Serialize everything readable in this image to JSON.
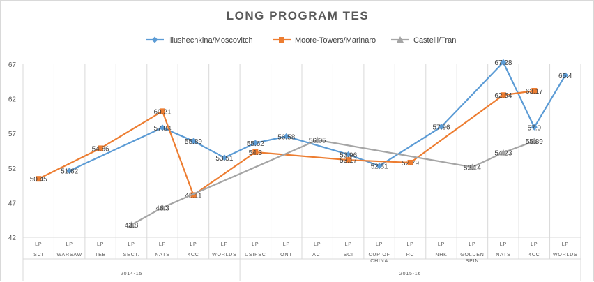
{
  "chart_data": {
    "type": "line",
    "title": "LONG PROGRAM TES",
    "xlabel": "",
    "ylabel": "",
    "ylim": [
      42,
      67
    ],
    "yticks": [
      42,
      47,
      52,
      57,
      62,
      67
    ],
    "grid": "vertical gridlines",
    "legend_position": "top",
    "categories": [
      [
        "LP",
        "SCI"
      ],
      [
        "LP",
        "WARSAW"
      ],
      [
        "LP",
        "TEB"
      ],
      [
        "LP",
        "SECT."
      ],
      [
        "LP",
        "NATS"
      ],
      [
        "LP",
        "4CC"
      ],
      [
        "LP",
        "WORLDS"
      ],
      [
        "LP",
        "USIFSC"
      ],
      [
        "LP",
        "ONT"
      ],
      [
        "LP",
        "ACI"
      ],
      [
        "LP",
        "SCI"
      ],
      [
        "LP",
        "CUP OF",
        "CHINA"
      ],
      [
        "LP",
        "RC"
      ],
      [
        "LP",
        "NHK"
      ],
      [
        "LP",
        "GOLDEN",
        "SPIN"
      ],
      [
        "LP",
        "NATS"
      ],
      [
        "LP",
        "4CC"
      ],
      [
        "LP",
        "WORLDS"
      ]
    ],
    "groups": [
      {
        "label": "2014-15",
        "from": 0,
        "to": 6
      },
      {
        "label": "2015-16",
        "from": 7,
        "to": 17
      }
    ],
    "series": [
      {
        "name": "Iliushechkina/Moscovitch",
        "color": "#5b9bd5",
        "marker": "diamond",
        "values": [
          null,
          51.62,
          null,
          null,
          57.84,
          55.89,
          53.51,
          55.62,
          56.58,
          null,
          53.96,
          52.31,
          null,
          57.96,
          null,
          67.28,
          57.9,
          65.4
        ],
        "labels": [
          null,
          "51.62",
          null,
          null,
          "57.84",
          "55.89",
          "53.51",
          "55.62",
          "56.58",
          null,
          "53.96",
          "52.31",
          null,
          "57.96",
          null,
          "67.28",
          "57.9",
          "65.4"
        ]
      },
      {
        "name": "Moore-Towers/Marinaro",
        "color": "#ed7d31",
        "marker": "square",
        "values": [
          50.45,
          null,
          54.86,
          null,
          60.21,
          48.11,
          null,
          54.3,
          null,
          null,
          53.17,
          null,
          52.79,
          null,
          null,
          62.54,
          63.17,
          null
        ],
        "labels": [
          "50.45",
          null,
          "54.86",
          null,
          "60.21",
          "48.11",
          null,
          "54.3",
          null,
          null,
          "53.17",
          null,
          "52.79",
          null,
          null,
          "62.54",
          "63.17",
          null
        ]
      },
      {
        "name": "Castelli/Tran",
        "color": "#a5a5a5",
        "marker": "triangle",
        "values": [
          null,
          null,
          null,
          43.8,
          46.3,
          null,
          null,
          null,
          null,
          56.05,
          null,
          null,
          null,
          null,
          52.14,
          54.23,
          55.89,
          null
        ],
        "labels": [
          null,
          null,
          null,
          "43.8",
          "46.3",
          null,
          null,
          null,
          null,
          "56.05",
          null,
          null,
          null,
          null,
          "52.14",
          "54.23",
          "55.89",
          null
        ]
      }
    ]
  }
}
